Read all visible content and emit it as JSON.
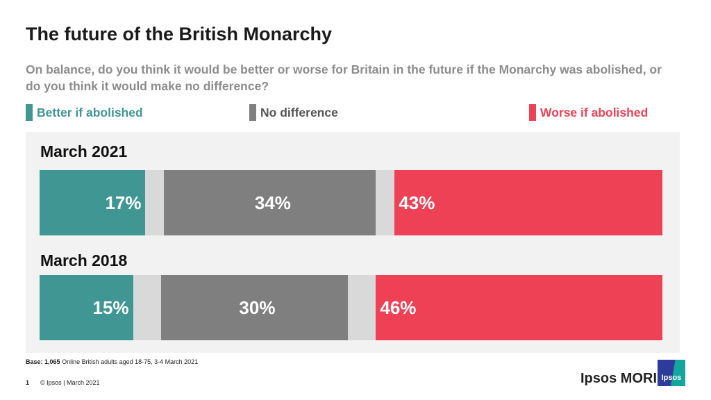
{
  "title": "The future of the British Monarchy",
  "subtitle": "On balance, do you think it would be better or worse for Britain in the future if the Monarchy was abolished, or do you think it would make no difference?",
  "chart_data": {
    "type": "bar",
    "orientation": "horizontal-stacked",
    "categories": [
      "March 2021",
      "March 2018"
    ],
    "series": [
      {
        "name": "Better if abolished",
        "color": "#3f9693",
        "values": [
          17,
          15
        ]
      },
      {
        "name": "No difference",
        "color": "#7f7f7f",
        "values": [
          34,
          30
        ]
      },
      {
        "name": "Worse if abolished",
        "color": "#ef4155",
        "values": [
          43,
          46
        ]
      }
    ],
    "gap_color": "#d9d9d9",
    "value_labels": [
      [
        "17%",
        "34%",
        "43%"
      ],
      [
        "15%",
        "30%",
        "46%"
      ]
    ],
    "legend_placement": "top",
    "xlim": [
      0,
      100
    ]
  },
  "footer": {
    "base_bold": "Base:",
    "base_count": "1,065",
    "base_text": "Online British adults aged 18-75, 3-4 March 2021",
    "page_number": "1",
    "copyright": "© Ipsos |  March 2021"
  },
  "brand": {
    "name": "Ipsos MORI",
    "logo_text": "Ipsos"
  }
}
